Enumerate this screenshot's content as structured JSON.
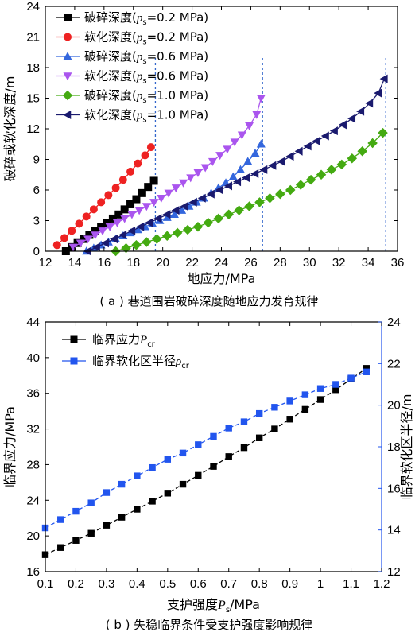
{
  "chart_data": [
    {
      "type": "scatter",
      "caption": "( a ) 巷道围岩破碎深度随地应力发育规律",
      "xlabel": "地应力/MPa",
      "ylabel": "破碎或软化深度/m",
      "xlim": [
        12,
        36
      ],
      "ylim": [
        0,
        24
      ],
      "xticks": [
        12,
        14,
        16,
        18,
        20,
        22,
        24,
        26,
        28,
        30,
        32,
        34,
        36
      ],
      "yticks": [
        0,
        3,
        6,
        9,
        12,
        15,
        18,
        21,
        24
      ],
      "legend_position": "top-left",
      "vlines": [
        {
          "x": 19.5,
          "color": "#3366cc"
        },
        {
          "x": 26.8,
          "color": "#3366cc"
        },
        {
          "x": 35.2,
          "color": "#3366cc"
        }
      ],
      "series": [
        {
          "name_main": "破碎深度(",
          "name_var": "p",
          "name_sub": "s",
          "name_tail": "=0.2 MPa)",
          "marker": "square",
          "color": "#000000",
          "x": [
            13.4,
            13.8,
            14.2,
            14.6,
            15.0,
            15.4,
            15.8,
            16.2,
            16.6,
            17.0,
            17.4,
            17.8,
            18.2,
            18.6,
            19.0,
            19.4
          ],
          "y": [
            0.0,
            0.4,
            0.8,
            1.2,
            1.6,
            2.0,
            2.4,
            2.8,
            3.2,
            3.6,
            4.1,
            4.6,
            5.1,
            5.7,
            6.3,
            6.9
          ]
        },
        {
          "name_main": "软化深度(",
          "name_var": "p",
          "name_sub": "s",
          "name_tail": "=0.2 MPa)",
          "marker": "circle",
          "color": "#ee2222",
          "x": [
            12.8,
            13.3,
            13.8,
            14.3,
            14.8,
            15.3,
            15.8,
            16.3,
            16.8,
            17.3,
            17.8,
            18.3,
            18.8,
            19.2
          ],
          "y": [
            0.6,
            1.3,
            2.0,
            2.7,
            3.4,
            4.1,
            4.8,
            5.5,
            6.2,
            7.0,
            7.8,
            8.6,
            9.4,
            10.2
          ]
        },
        {
          "name_main": "破碎深度(",
          "name_var": "p",
          "name_sub": "s",
          "name_tail": "=0.6 MPa)",
          "marker": "triangle-up",
          "color": "#3366dd",
          "x": [
            14.8,
            15.3,
            15.8,
            16.3,
            16.8,
            17.3,
            17.8,
            18.3,
            18.8,
            19.3,
            19.8,
            20.3,
            20.8,
            21.3,
            21.8,
            22.3,
            22.8,
            23.3,
            23.8,
            24.3,
            24.8,
            25.3,
            25.8,
            26.3,
            26.7
          ],
          "y": [
            0.0,
            0.3,
            0.6,
            0.9,
            1.2,
            1.5,
            1.8,
            2.1,
            2.4,
            2.7,
            3.0,
            3.3,
            3.6,
            4.0,
            4.4,
            4.8,
            5.2,
            5.7,
            6.2,
            6.7,
            7.3,
            8.0,
            8.8,
            9.6,
            10.5
          ]
        },
        {
          "name_main": "软化深度(",
          "name_var": "p",
          "name_sub": "s",
          "name_tail": "=0.6 MPa)",
          "marker": "triangle-down",
          "color": "#aa55ee",
          "x": [
            13.9,
            14.4,
            14.9,
            15.4,
            15.9,
            16.4,
            16.9,
            17.4,
            17.9,
            18.4,
            18.9,
            19.4,
            19.9,
            20.4,
            20.9,
            21.4,
            21.9,
            22.4,
            22.9,
            23.4,
            23.9,
            24.4,
            24.9,
            25.4,
            25.9,
            26.4,
            26.7
          ],
          "y": [
            0.4,
            0.8,
            1.2,
            1.6,
            2.0,
            2.4,
            2.8,
            3.2,
            3.6,
            4.0,
            4.4,
            4.8,
            5.2,
            5.7,
            6.2,
            6.7,
            7.2,
            7.7,
            8.2,
            8.8,
            9.4,
            10.0,
            10.7,
            11.4,
            12.3,
            13.4,
            15.0
          ]
        },
        {
          "name_main": "破碎深度(",
          "name_var": "p",
          "name_sub": "s",
          "name_tail": "=1.0 MPa)",
          "marker": "diamond",
          "color": "#44aa11",
          "x": [
            16.8,
            17.5,
            18.2,
            18.9,
            19.6,
            20.3,
            21.0,
            21.7,
            22.4,
            23.1,
            23.8,
            24.5,
            25.2,
            25.9,
            26.6,
            27.3,
            28.0,
            28.7,
            29.4,
            30.1,
            30.8,
            31.5,
            32.2,
            32.9,
            33.6,
            34.3,
            35.0
          ],
          "y": [
            0.0,
            0.3,
            0.6,
            0.9,
            1.2,
            1.5,
            1.8,
            2.1,
            2.4,
            2.8,
            3.2,
            3.6,
            4.0,
            4.4,
            4.8,
            5.2,
            5.6,
            6.0,
            6.5,
            7.0,
            7.5,
            8.0,
            8.5,
            9.1,
            9.8,
            10.6,
            11.6
          ]
        },
        {
          "name_main": "软化深度(",
          "name_var": "p",
          "name_sub": "s",
          "name_tail": "=1.0 MPa)",
          "marker": "triangle-left",
          "color": "#1a1a6e",
          "x": [
            14.9,
            15.5,
            16.1,
            16.7,
            17.3,
            17.9,
            18.5,
            19.1,
            19.7,
            20.3,
            20.9,
            21.5,
            22.1,
            22.7,
            23.3,
            23.9,
            24.5,
            25.1,
            25.7,
            26.3,
            26.9,
            27.5,
            28.1,
            28.7,
            29.3,
            29.9,
            30.5,
            31.1,
            31.7,
            32.3,
            32.9,
            33.5,
            34.1,
            34.7,
            35.1
          ],
          "y": [
            0.0,
            0.4,
            0.8,
            1.2,
            1.6,
            2.0,
            2.4,
            2.8,
            3.2,
            3.6,
            4.0,
            4.4,
            4.8,
            5.2,
            5.6,
            6.0,
            6.4,
            6.8,
            7.2,
            7.6,
            8.0,
            8.4,
            8.8,
            9.3,
            9.8,
            10.3,
            10.8,
            11.3,
            11.8,
            12.4,
            13.0,
            13.7,
            14.5,
            15.5,
            16.9
          ]
        }
      ]
    },
    {
      "type": "line",
      "caption": "( b ) 失稳临界条件受支护强度影响规律",
      "xlabel_main": "支护强度",
      "xlabel_var": "P",
      "xlabel_sub": "s",
      "xlabel_tail": "/MPa",
      "ylabel_left": "临界应力/MPa",
      "ylabel_right": "临界软化区半径/m",
      "xlim": [
        0.1,
        1.2
      ],
      "ylim_left": [
        16,
        44
      ],
      "ylim_right": [
        12,
        24
      ],
      "xticks": [
        0.1,
        0.2,
        0.3,
        0.4,
        0.5,
        0.6,
        0.7,
        0.8,
        0.9,
        1.0,
        1.1,
        1.2
      ],
      "yticks_left": [
        16,
        20,
        24,
        28,
        32,
        36,
        40,
        44
      ],
      "yticks_right": [
        12,
        14,
        16,
        18,
        20,
        22,
        24
      ],
      "legend_position": "top-left",
      "x": [
        0.1,
        0.15,
        0.2,
        0.25,
        0.3,
        0.35,
        0.4,
        0.45,
        0.5,
        0.55,
        0.6,
        0.65,
        0.7,
        0.75,
        0.8,
        0.85,
        0.9,
        0.95,
        1.0,
        1.05,
        1.1,
        1.15
      ],
      "series": [
        {
          "name_main": "临界应力",
          "name_var": "P",
          "name_sub": "cr",
          "axis": "left",
          "marker": "square",
          "color": "#000000",
          "values": [
            17.9,
            18.7,
            19.5,
            20.3,
            21.2,
            22.1,
            23.0,
            23.9,
            24.8,
            25.8,
            26.8,
            27.8,
            28.9,
            29.9,
            31.0,
            32.0,
            33.1,
            34.2,
            35.3,
            36.4,
            37.6,
            38.8
          ]
        },
        {
          "name_main": "临界软化区半径",
          "name_var": "ρ",
          "name_sub": "cr",
          "axis": "right",
          "marker": "square",
          "color": "#2255ee",
          "values": [
            14.1,
            14.5,
            14.9,
            15.3,
            15.8,
            16.2,
            16.6,
            17.0,
            17.4,
            17.7,
            18.1,
            18.5,
            18.9,
            19.2,
            19.6,
            19.9,
            20.2,
            20.5,
            20.8,
            21.0,
            21.3,
            21.6
          ]
        }
      ]
    }
  ]
}
